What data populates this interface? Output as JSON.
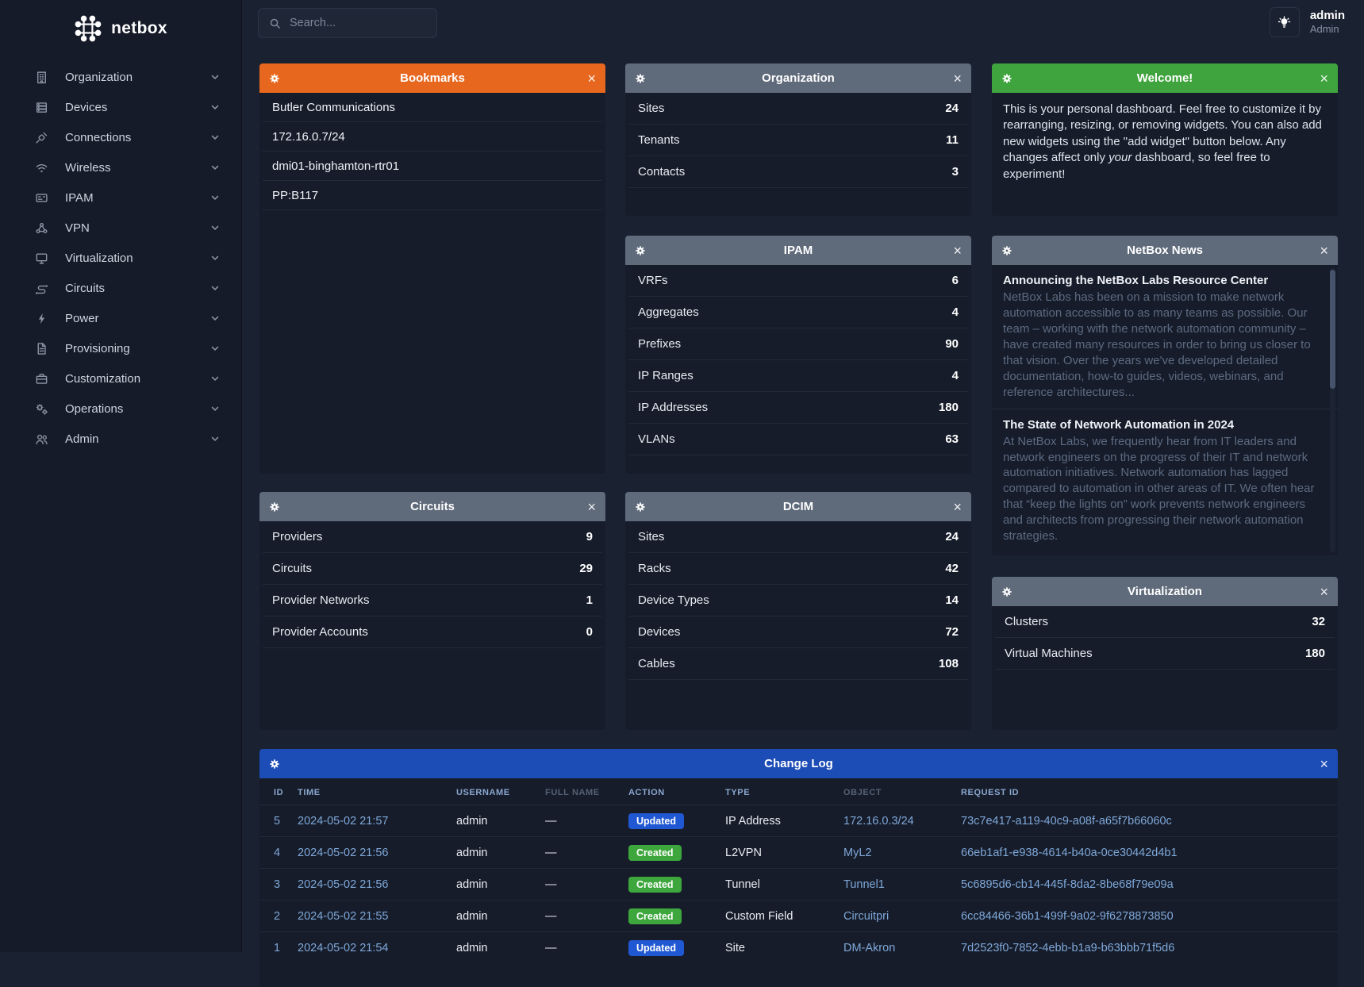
{
  "app": {
    "logo_text": "netbox"
  },
  "sidebar": {
    "items": [
      {
        "label": "Organization",
        "icon": "building-icon"
      },
      {
        "label": "Devices",
        "icon": "server-icon"
      },
      {
        "label": "Connections",
        "icon": "plug-icon"
      },
      {
        "label": "Wireless",
        "icon": "wifi-icon"
      },
      {
        "label": "IPAM",
        "icon": "ip-card-icon"
      },
      {
        "label": "VPN",
        "icon": "network-icon"
      },
      {
        "label": "Virtualization",
        "icon": "monitor-icon"
      },
      {
        "label": "Circuits",
        "icon": "circuit-icon"
      },
      {
        "label": "Power",
        "icon": "bolt-icon"
      },
      {
        "label": "Provisioning",
        "icon": "document-icon"
      },
      {
        "label": "Customization",
        "icon": "briefcase-icon"
      },
      {
        "label": "Operations",
        "icon": "gears-icon"
      },
      {
        "label": "Admin",
        "icon": "users-icon"
      }
    ]
  },
  "topbar": {
    "search_placeholder": "Search...",
    "user": {
      "name": "admin",
      "role": "Admin"
    }
  },
  "widgets": {
    "bookmarks": {
      "title": "Bookmarks",
      "items": [
        "Butler Communications",
        "172.16.0.7/24",
        "dmi01-binghamton-rtr01",
        "PP:B117"
      ]
    },
    "organization": {
      "title": "Organization",
      "rows": [
        {
          "label": "Sites",
          "value": "24"
        },
        {
          "label": "Tenants",
          "value": "11"
        },
        {
          "label": "Contacts",
          "value": "3"
        }
      ]
    },
    "welcome": {
      "title": "Welcome!",
      "body_before": "This is your personal dashboard. Feel free to customize it by rearranging, resizing, or removing widgets. You can also add new widgets using the \"add widget\" button below. Any changes affect only ",
      "body_italic": "your",
      "body_after": " dashboard, so feel free to experiment!"
    },
    "ipam": {
      "title": "IPAM",
      "rows": [
        {
          "label": "VRFs",
          "value": "6"
        },
        {
          "label": "Aggregates",
          "value": "4"
        },
        {
          "label": "Prefixes",
          "value": "90"
        },
        {
          "label": "IP Ranges",
          "value": "4"
        },
        {
          "label": "IP Addresses",
          "value": "180"
        },
        {
          "label": "VLANs",
          "value": "63"
        }
      ]
    },
    "news": {
      "title": "NetBox News",
      "articles": [
        {
          "title": "Announcing the NetBox Labs Resource Center",
          "body": "NetBox Labs has been on a mission to make network automation accessible to as many teams as possible. Our team – working with the network automation community – have created many resources in order to bring us closer to that vision. Over the years we've developed detailed documentation, how-to guides, videos, webinars, and reference architectures..."
        },
        {
          "title": "The State of Network Automation in 2024",
          "body": "At NetBox Labs, we frequently hear from IT leaders and network engineers on the progress of their IT and network automation initiatives. Network automation has lagged compared to automation in other areas of IT. We often hear that “keep the lights on” work prevents network engineers and architects from progressing their network automation strategies."
        }
      ]
    },
    "circuits": {
      "title": "Circuits",
      "rows": [
        {
          "label": "Providers",
          "value": "9"
        },
        {
          "label": "Circuits",
          "value": "29"
        },
        {
          "label": "Provider Networks",
          "value": "1"
        },
        {
          "label": "Provider Accounts",
          "value": "0"
        }
      ]
    },
    "dcim": {
      "title": "DCIM",
      "rows": [
        {
          "label": "Sites",
          "value": "24"
        },
        {
          "label": "Racks",
          "value": "42"
        },
        {
          "label": "Device Types",
          "value": "14"
        },
        {
          "label": "Devices",
          "value": "72"
        },
        {
          "label": "Cables",
          "value": "108"
        }
      ]
    },
    "virtualization": {
      "title": "Virtualization",
      "rows": [
        {
          "label": "Clusters",
          "value": "32"
        },
        {
          "label": "Virtual Machines",
          "value": "180"
        }
      ]
    },
    "changelog": {
      "title": "Change Log",
      "columns": [
        {
          "label": "ID",
          "sortable": true
        },
        {
          "label": "Time",
          "sortable": true
        },
        {
          "label": "Username",
          "sortable": true
        },
        {
          "label": "Full Name",
          "sortable": false
        },
        {
          "label": "Action",
          "sortable": true
        },
        {
          "label": "Type",
          "sortable": true
        },
        {
          "label": "Object",
          "sortable": false
        },
        {
          "label": "Request ID",
          "sortable": true
        }
      ],
      "rows": [
        {
          "id": "5",
          "time": "2024-05-02 21:57",
          "username": "admin",
          "full_name": "—",
          "action": "Updated",
          "type": "IP Address",
          "object": "172.16.0.3/24",
          "request_id": "73c7e417-a119-40c9-a08f-a65f7b66060c"
        },
        {
          "id": "4",
          "time": "2024-05-02 21:56",
          "username": "admin",
          "full_name": "—",
          "action": "Created",
          "type": "L2VPN",
          "object": "MyL2",
          "request_id": "66eb1af1-e938-4614-b40a-0ce30442d4b1"
        },
        {
          "id": "3",
          "time": "2024-05-02 21:56",
          "username": "admin",
          "full_name": "—",
          "action": "Created",
          "type": "Tunnel",
          "object": "Tunnel1",
          "request_id": "5c6895d6-cb14-445f-8da2-8be68f79e09a"
        },
        {
          "id": "2",
          "time": "2024-05-02 21:55",
          "username": "admin",
          "full_name": "—",
          "action": "Created",
          "type": "Custom Field",
          "object": "Circuitpri",
          "request_id": "6cc84466-36b1-499f-9a02-9f6278873850"
        },
        {
          "id": "1",
          "time": "2024-05-02 21:54",
          "username": "admin",
          "full_name": "—",
          "action": "Updated",
          "type": "Site",
          "object": "DM-Akron",
          "request_id": "7d2523f0-7852-4ebb-b1a9-b63bbb71f5d6"
        }
      ]
    }
  },
  "colors": {
    "accent_orange": "#e8671e",
    "accent_green": "#3fa43d",
    "accent_blue": "#1c4cb5",
    "badge_updated": "#2057d2",
    "badge_created": "#3da63c",
    "link_blue": "#7fa8d9"
  }
}
